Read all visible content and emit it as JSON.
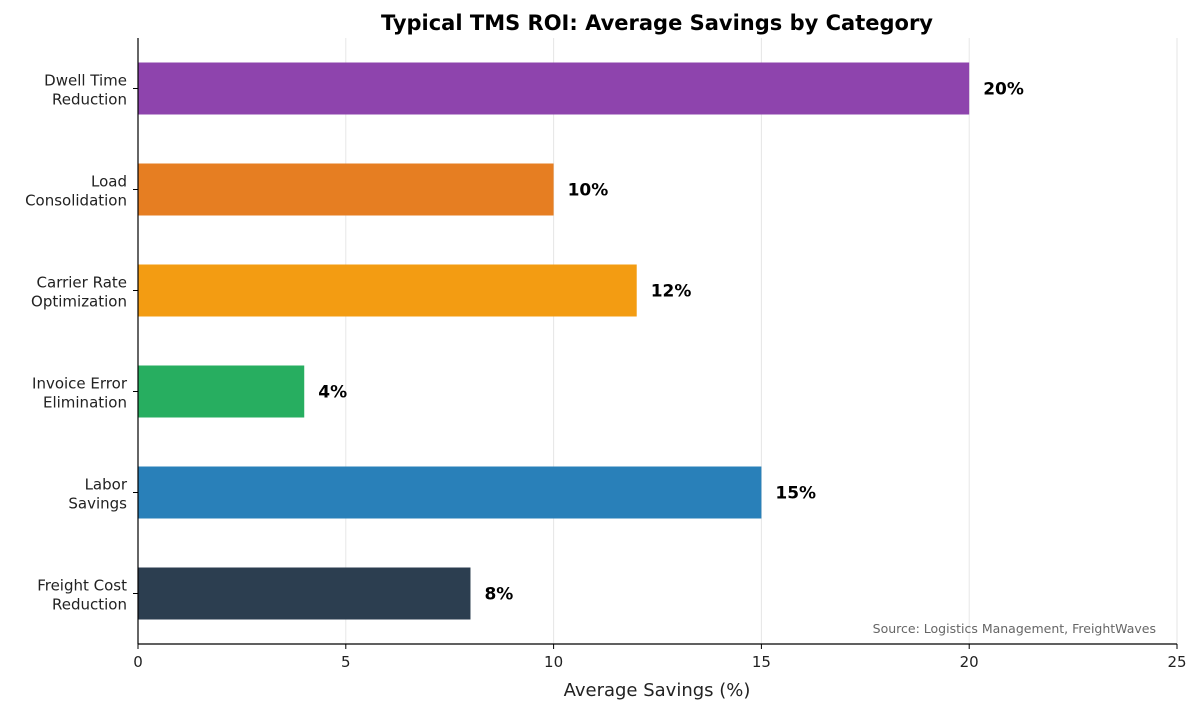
{
  "chart_data": {
    "type": "bar",
    "orientation": "horizontal",
    "title": "Typical TMS ROI: Average Savings by Category",
    "xlabel": "Average Savings (%)",
    "ylabel": "",
    "xlim": [
      0,
      25
    ],
    "xticks": [
      0,
      5,
      10,
      15,
      20,
      25
    ],
    "grid": "vertical",
    "categories": [
      [
        "Dwell Time",
        "Reduction"
      ],
      [
        "Load",
        "Consolidation"
      ],
      [
        "Carrier Rate",
        "Optimization"
      ],
      [
        "Invoice Error",
        "Elimination"
      ],
      [
        "Labor",
        "Savings"
      ],
      [
        "Freight Cost",
        "Reduction"
      ]
    ],
    "values": [
      20,
      10,
      12,
      4,
      15,
      8
    ],
    "data_labels": [
      "20%",
      "10%",
      "12%",
      "4%",
      "15%",
      "8%"
    ],
    "colors": [
      "#8e44ad",
      "#e67e22",
      "#f39c12",
      "#27ae60",
      "#2980b9",
      "#2c3e50"
    ],
    "annotation": "Source: Logistics Management, FreightWaves"
  }
}
